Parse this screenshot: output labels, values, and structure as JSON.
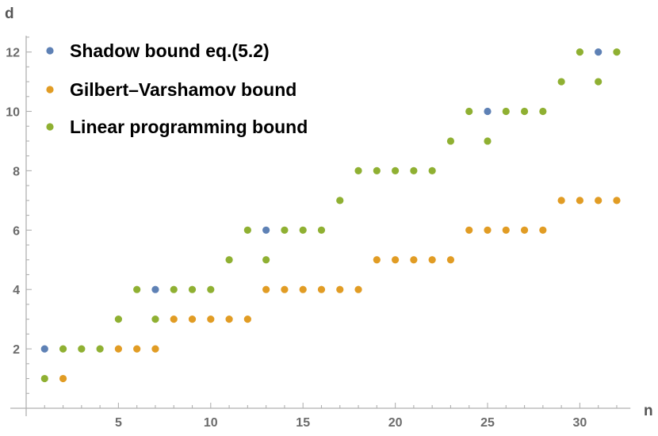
{
  "chart_data": {
    "type": "scatter",
    "title": "",
    "xlabel": "n",
    "ylabel": "d",
    "xlim": [
      0,
      33
    ],
    "ylim": [
      0,
      12.6
    ],
    "x_ticks": [
      5,
      10,
      15,
      20,
      25,
      30
    ],
    "y_ticks": [
      2,
      4,
      6,
      8,
      10,
      12
    ],
    "grid": false,
    "legend_position": "top-left",
    "series": [
      {
        "name": "Shadow bound eq.(5.2)",
        "color": "#5e81b5",
        "points": [
          [
            1,
            2
          ],
          [
            7,
            4
          ],
          [
            13,
            6
          ],
          [
            25,
            10
          ],
          [
            31,
            12
          ]
        ]
      },
      {
        "name": "Gilbert–Varshamov bound",
        "color": "#e19c24",
        "points": [
          [
            2,
            1
          ],
          [
            5,
            2
          ],
          [
            6,
            2
          ],
          [
            7,
            2
          ],
          [
            8,
            3
          ],
          [
            9,
            3
          ],
          [
            10,
            3
          ],
          [
            11,
            3
          ],
          [
            12,
            3
          ],
          [
            13,
            4
          ],
          [
            14,
            4
          ],
          [
            15,
            4
          ],
          [
            16,
            4
          ],
          [
            17,
            4
          ],
          [
            18,
            4
          ],
          [
            19,
            5
          ],
          [
            20,
            5
          ],
          [
            21,
            5
          ],
          [
            22,
            5
          ],
          [
            23,
            5
          ],
          [
            24,
            6
          ],
          [
            25,
            6
          ],
          [
            26,
            6
          ],
          [
            27,
            6
          ],
          [
            28,
            6
          ],
          [
            29,
            7
          ],
          [
            30,
            7
          ],
          [
            31,
            7
          ],
          [
            32,
            7
          ]
        ]
      },
      {
        "name": "Linear programming bound",
        "color": "#8fb032",
        "points": [
          [
            1,
            1
          ],
          [
            2,
            2
          ],
          [
            3,
            2
          ],
          [
            4,
            2
          ],
          [
            5,
            3
          ],
          [
            6,
            4
          ],
          [
            7,
            3
          ],
          [
            8,
            4
          ],
          [
            9,
            4
          ],
          [
            10,
            4
          ],
          [
            11,
            5
          ],
          [
            12,
            6
          ],
          [
            13,
            5
          ],
          [
            14,
            6
          ],
          [
            15,
            6
          ],
          [
            16,
            6
          ],
          [
            17,
            7
          ],
          [
            18,
            8
          ],
          [
            19,
            8
          ],
          [
            20,
            8
          ],
          [
            21,
            8
          ],
          [
            22,
            8
          ],
          [
            23,
            9
          ],
          [
            24,
            10
          ],
          [
            25,
            9
          ],
          [
            26,
            10
          ],
          [
            27,
            10
          ],
          [
            28,
            10
          ],
          [
            29,
            11
          ],
          [
            30,
            12
          ],
          [
            31,
            11
          ],
          [
            32,
            12
          ]
        ]
      }
    ]
  }
}
